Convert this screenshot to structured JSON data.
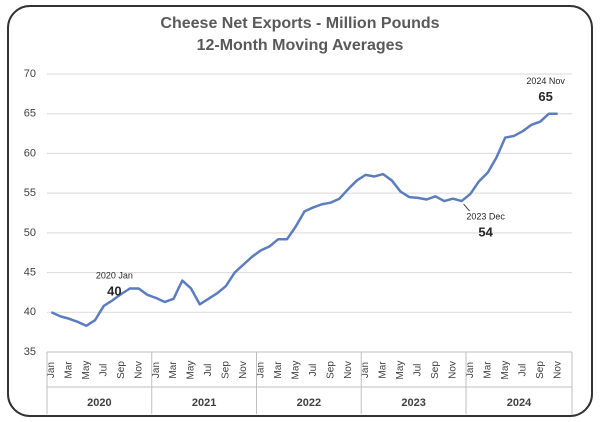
{
  "chart_data": {
    "type": "line",
    "title": "Cheese Net Exports - Million Pounds",
    "subtitle": "12-Month Moving Averages",
    "categories": [
      "Jan",
      null,
      "Mar",
      null,
      "May",
      null,
      "Jul",
      null,
      "Sep",
      null,
      "Nov",
      null,
      "Jan",
      null,
      "Mar",
      null,
      "May",
      null,
      "Jul",
      null,
      "Sep",
      null,
      "Nov",
      null,
      "Jan",
      null,
      "Mar",
      null,
      "May",
      null,
      "Jul",
      null,
      "Sep",
      null,
      "Nov",
      null,
      "Jan",
      null,
      "Mar",
      null,
      "May",
      null,
      "Jul",
      null,
      "Sep",
      null,
      "Nov",
      null,
      "Jan",
      null,
      "Mar",
      null,
      "May",
      null,
      "Jul",
      null,
      "Sep",
      null,
      "Nov"
    ],
    "years": [
      "2020",
      "2021",
      "2022",
      "2023",
      "2024"
    ],
    "values": [
      40,
      39.5,
      39.2,
      38.8,
      38.3,
      39,
      40.8,
      41.5,
      42.3,
      43,
      43,
      42.2,
      41.8,
      41.3,
      41.7,
      44,
      43,
      41,
      41.7,
      42.4,
      43.3,
      45,
      46,
      47,
      47.8,
      48.3,
      49.2,
      49.2,
      50.8,
      52.7,
      53.2,
      53.6,
      53.8,
      54.3,
      55.5,
      56.6,
      57.3,
      57.1,
      57.4,
      56.6,
      55.2,
      54.5,
      54.4,
      54.2,
      54.6,
      54,
      54.3,
      54,
      54.9,
      56.5,
      57.6,
      59.5,
      62,
      62.2,
      62.8,
      63.6,
      64,
      65,
      65
    ],
    "color": "#5b7dbf",
    "annotations": [
      "2020 Jan",
      "2023 Dec",
      "2024 Nov"
    ],
    "ylim": [
      35,
      70
    ],
    "yticks": [
      35,
      40,
      45,
      50,
      55,
      60,
      65,
      70
    ],
    "grid": true
  }
}
